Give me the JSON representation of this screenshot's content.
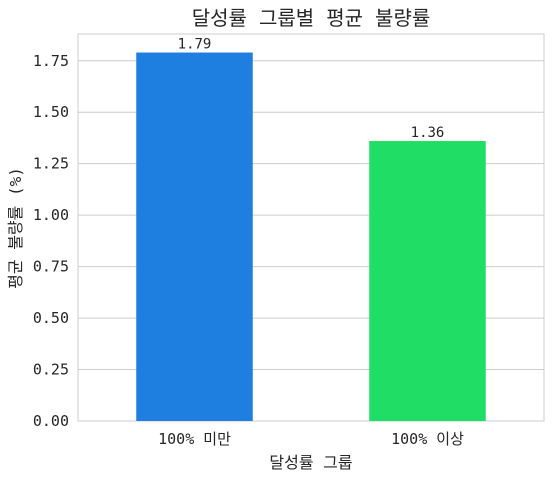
{
  "chart_data": {
    "type": "bar",
    "title": "달성률 그룹별 평균 불량률",
    "xlabel": "달성률 그룹",
    "ylabel": "평균 불량률 (%)",
    "categories": [
      "100% 미만",
      "100% 이상"
    ],
    "values": [
      1.79,
      1.36
    ],
    "data_labels": [
      "1.79",
      "1.36"
    ],
    "bar_colors": [
      "#1f7fe0",
      "#20dd66"
    ],
    "ylim": [
      0,
      1.88
    ],
    "yticks": [
      0.0,
      0.25,
      0.5,
      0.75,
      1.0,
      1.25,
      1.5,
      1.75
    ],
    "ytick_labels": [
      "0.00",
      "0.25",
      "0.50",
      "0.75",
      "1.00",
      "1.25",
      "1.50",
      "1.75"
    ],
    "grid": "horizontal",
    "legend": "none"
  }
}
